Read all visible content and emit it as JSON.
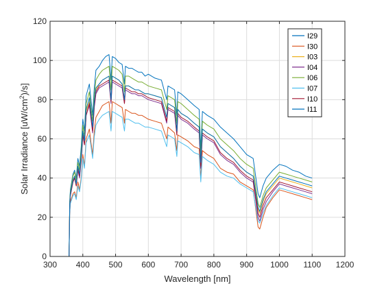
{
  "chart_data": {
    "type": "line",
    "xlabel": "Wavelength [nm]",
    "ylabel_parts": [
      "Solar Irradiance [uW/cm",
      "2",
      ")/s]"
    ],
    "xlim": [
      300,
      1200
    ],
    "ylim": [
      0,
      120
    ],
    "xticks": [
      300,
      400,
      500,
      600,
      700,
      800,
      900,
      1000,
      1100,
      1200
    ],
    "yticks": [
      0,
      20,
      40,
      60,
      80,
      100,
      120
    ],
    "grid": true,
    "legend_position": "top-right",
    "x": [
      358,
      360,
      362,
      370,
      375,
      380,
      385,
      390,
      395,
      400,
      405,
      410,
      420,
      425,
      430,
      435,
      440,
      450,
      460,
      470,
      480,
      486,
      490,
      500,
      510,
      520,
      527,
      530,
      540,
      550,
      560,
      570,
      580,
      590,
      600,
      620,
      640,
      656,
      660,
      680,
      687,
      690,
      700,
      720,
      740,
      755,
      760,
      765,
      780,
      800,
      820,
      840,
      860,
      880,
      900,
      920,
      935,
      940,
      950,
      960,
      980,
      1000,
      1020,
      1040,
      1060,
      1080,
      1100
    ],
    "series": [
      {
        "name": "I29",
        "color": "#0072BD",
        "values": [
          0,
          28,
          34,
          42,
          44,
          40,
          50,
          46,
          56,
          70,
          64,
          82,
          88,
          80,
          72,
          86,
          95,
          97,
          100,
          102,
          103,
          90,
          102,
          101,
          99,
          98,
          88,
          97,
          96,
          96,
          95,
          94,
          94,
          92,
          93,
          91,
          90,
          80,
          87,
          85,
          72,
          84,
          83,
          80,
          77,
          75,
          55,
          74,
          72,
          70,
          66,
          63,
          60,
          56,
          52,
          50,
          32,
          30,
          36,
          40,
          44,
          47,
          46,
          44,
          43,
          41,
          40
        ]
      },
      {
        "name": "I30",
        "color": "#D95319",
        "values": [
          0,
          22,
          28,
          32,
          33,
          30,
          38,
          34,
          40,
          52,
          46,
          60,
          65,
          58,
          52,
          64,
          71,
          74,
          77,
          78,
          79,
          68,
          79,
          78,
          77,
          76,
          68,
          75,
          74,
          73,
          73,
          72,
          72,
          71,
          70,
          69,
          68,
          60,
          66,
          63,
          54,
          62,
          61,
          59,
          56,
          55,
          40,
          54,
          52,
          50,
          45,
          43,
          42,
          38,
          36,
          34,
          15,
          14,
          20,
          25,
          30,
          34,
          33,
          32,
          31,
          30,
          29
        ]
      },
      {
        "name": "I03",
        "color": "#EDB120",
        "values": [
          0,
          27,
          32,
          39,
          41,
          37,
          46,
          42,
          51,
          63,
          58,
          74,
          79,
          72,
          65,
          78,
          85,
          88,
          90,
          91,
          92,
          80,
          92,
          91,
          90,
          88,
          80,
          87,
          87,
          86,
          85,
          85,
          84,
          83,
          83,
          82,
          81,
          71,
          78,
          76,
          64,
          75,
          73,
          71,
          68,
          66,
          48,
          65,
          63,
          61,
          56,
          53,
          50,
          46,
          43,
          41,
          24,
          22,
          28,
          32,
          36,
          40,
          39,
          38,
          37,
          36,
          35
        ]
      },
      {
        "name": "I04",
        "color": "#7E2F8E",
        "values": [
          0,
          26,
          31,
          38,
          40,
          36,
          44,
          40,
          49,
          62,
          57,
          72,
          77,
          70,
          63,
          76,
          83,
          86,
          87,
          88,
          89,
          78,
          89,
          88,
          87,
          86,
          78,
          85,
          84,
          83,
          83,
          82,
          82,
          81,
          80,
          79,
          78,
          68,
          75,
          73,
          62,
          72,
          70,
          68,
          65,
          63,
          45,
          62,
          60,
          58,
          52,
          49,
          47,
          43,
          40,
          38,
          20,
          18,
          24,
          28,
          33,
          37,
          36,
          35,
          34,
          33,
          32
        ]
      },
      {
        "name": "I06",
        "color": "#77AC30",
        "values": [
          0,
          28,
          33,
          41,
          43,
          39,
          48,
          44,
          54,
          67,
          61,
          78,
          84,
          76,
          69,
          82,
          90,
          93,
          95,
          96,
          97,
          85,
          97,
          96,
          95,
          93,
          84,
          92,
          92,
          91,
          90,
          89,
          89,
          88,
          87,
          86,
          85,
          75,
          82,
          80,
          68,
          79,
          78,
          75,
          72,
          70,
          51,
          69,
          67,
          65,
          60,
          57,
          54,
          50,
          47,
          45,
          27,
          25,
          31,
          35,
          39,
          43,
          42,
          41,
          40,
          39,
          38
        ]
      },
      {
        "name": "I07",
        "color": "#4DBEEE",
        "values": [
          0,
          22,
          27,
          31,
          32,
          29,
          36,
          33,
          39,
          50,
          45,
          58,
          62,
          56,
          50,
          61,
          67,
          70,
          72,
          73,
          74,
          64,
          74,
          73,
          72,
          71,
          64,
          70,
          70,
          69,
          68,
          68,
          67,
          66,
          66,
          65,
          64,
          56,
          62,
          60,
          51,
          59,
          58,
          56,
          53,
          52,
          38,
          51,
          49,
          47,
          43,
          41,
          40,
          37,
          35,
          33,
          18,
          17,
          22,
          26,
          31,
          35,
          34,
          33,
          32,
          31,
          30
        ]
      },
      {
        "name": "I10",
        "color": "#A2142F",
        "values": [
          0,
          26,
          31,
          38,
          40,
          36,
          45,
          41,
          50,
          62,
          57,
          72,
          78,
          71,
          64,
          77,
          84,
          87,
          88,
          89,
          90,
          79,
          90,
          89,
          88,
          87,
          78,
          86,
          85,
          84,
          84,
          83,
          83,
          82,
          81,
          80,
          79,
          69,
          76,
          74,
          62,
          73,
          71,
          69,
          66,
          64,
          46,
          63,
          61,
          59,
          53,
          50,
          48,
          44,
          41,
          39,
          22,
          20,
          26,
          30,
          34,
          38,
          37,
          36,
          35,
          34,
          33
        ]
      },
      {
        "name": "I11",
        "color": "#0072BD",
        "values": [
          0,
          27,
          32,
          39,
          41,
          37,
          46,
          42,
          51,
          64,
          59,
          75,
          81,
          73,
          66,
          79,
          86,
          88,
          90,
          91,
          92,
          80,
          92,
          91,
          90,
          88,
          80,
          87,
          87,
          86,
          85,
          85,
          84,
          83,
          83,
          82,
          81,
          71,
          78,
          76,
          64,
          75,
          73,
          71,
          68,
          66,
          48,
          65,
          63,
          61,
          56,
          53,
          50,
          46,
          43,
          41,
          25,
          23,
          29,
          33,
          37,
          41,
          40,
          39,
          38,
          37,
          36
        ]
      }
    ]
  }
}
